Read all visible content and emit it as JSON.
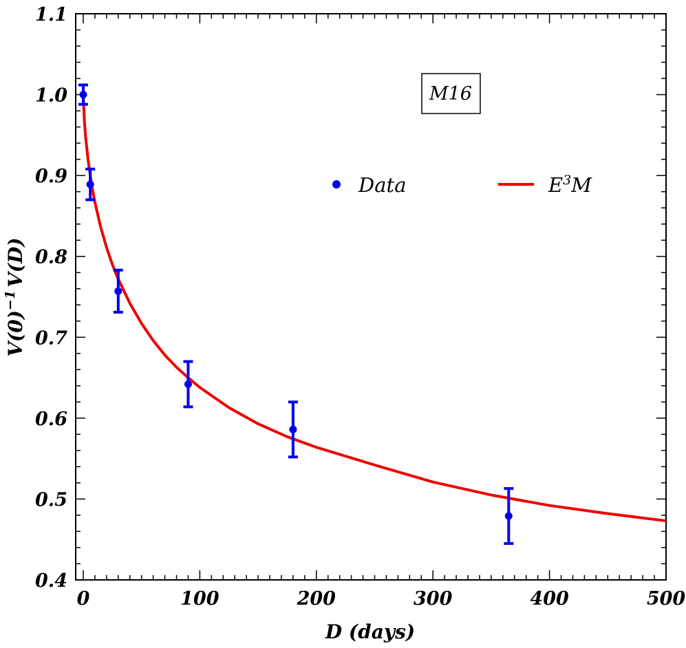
{
  "chart_data": {
    "type": "scatter",
    "title": "",
    "xlabel": "D (days)",
    "ylabel_parts": {
      "a": "V(0)",
      "sup": "−1",
      "b": "V(D)"
    },
    "xlim": [
      0,
      500
    ],
    "ylim": [
      0.4,
      1.1
    ],
    "x_ticks": [
      0,
      100,
      200,
      300,
      400,
      500
    ],
    "x_tick_labels": [
      "0",
      "100",
      "200",
      "300",
      "400",
      "500"
    ],
    "y_ticks": [
      0.4,
      0.5,
      0.6,
      0.7,
      0.8,
      0.9,
      1.0,
      1.1
    ],
    "y_tick_labels": [
      "0.4",
      "0.5",
      "0.6",
      "0.7",
      "0.8",
      "0.9",
      "1.0",
      "1.1"
    ],
    "grid": false,
    "legend_position": "upper-right",
    "annotation": "M16",
    "colors": {
      "data": "#0000ee",
      "model": "#ee0000"
    },
    "series": [
      {
        "name": "Data",
        "kind": "points-with-errorbars",
        "x": [
          0,
          6,
          30,
          90,
          180,
          365
        ],
        "y": [
          1.0,
          0.889,
          0.757,
          0.642,
          0.586,
          0.479
        ],
        "y_err": [
          0.012,
          0.019,
          0.026,
          0.028,
          0.034,
          0.034
        ]
      },
      {
        "name_parts": {
          "base": "E",
          "sup": "3",
          "tail": "M"
        },
        "kind": "line",
        "x": [
          0,
          1,
          2,
          4,
          6,
          8,
          10,
          15,
          20,
          25,
          30,
          40,
          50,
          60,
          70,
          80,
          90,
          100,
          125,
          150,
          175,
          200,
          250,
          300,
          350,
          400,
          450,
          500
        ],
        "y": [
          1.0,
          0.967,
          0.948,
          0.921,
          0.9,
          0.882,
          0.867,
          0.836,
          0.811,
          0.79,
          0.772,
          0.742,
          0.717,
          0.696,
          0.678,
          0.663,
          0.65,
          0.638,
          0.613,
          0.593,
          0.577,
          0.564,
          0.542,
          0.521,
          0.505,
          0.492,
          0.482,
          0.473
        ]
      }
    ]
  }
}
